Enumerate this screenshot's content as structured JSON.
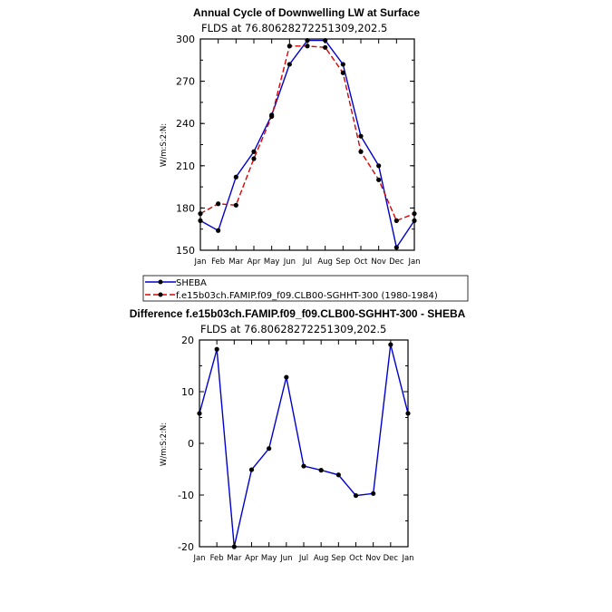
{
  "chart_data": [
    {
      "type": "line",
      "title": "Annual Cycle of Downwelling LW at Surface",
      "subtitle": "FLDS at 76.80628272251309,202.5",
      "ylabel": "W/m:S:2:N:",
      "ylim": [
        150,
        300
      ],
      "yticks": [
        150,
        180,
        210,
        240,
        270,
        300
      ],
      "categories": [
        "Jan",
        "Feb",
        "Mar",
        "Apr",
        "May",
        "Jun",
        "Jul",
        "Aug",
        "Sep",
        "Oct",
        "Nov",
        "Dec",
        "Jan"
      ],
      "series": [
        {
          "name": "SHEBA",
          "color": "#0000cc",
          "style": "solid",
          "values": [
            171,
            164,
            202,
            220,
            246,
            282,
            299,
            299,
            282,
            231,
            210,
            152,
            171
          ]
        },
        {
          "name": "f.e15b03ch.FAMIP.f09_f09.CLB00-SGHHT-300 (1980-1984)",
          "color": "#dd0000",
          "style": "dashed",
          "values": [
            176,
            183,
            182,
            215,
            245,
            295,
            295,
            294,
            276,
            220,
            200,
            171,
            176
          ]
        }
      ],
      "legend": "below"
    },
    {
      "type": "line",
      "title": "Difference f.e15b03ch.FAMIP.f09_f09.CLB00-SGHHT-300 - SHEBA",
      "subtitle": "FLDS at 76.80628272251309,202.5",
      "ylabel": "W/m:S:2:N:",
      "ylim": [
        -20,
        20
      ],
      "yticks": [
        -20,
        -10,
        0,
        10,
        20
      ],
      "categories": [
        "Jan",
        "Feb",
        "Mar",
        "Apr",
        "May",
        "Jun",
        "Jul",
        "Aug",
        "Sep",
        "Oct",
        "Nov",
        "Dec",
        "Jan"
      ],
      "series": [
        {
          "color": "#0000cc",
          "style": "solid",
          "values": [
            5.8,
            18.2,
            -20.0,
            -5.1,
            -1.0,
            12.8,
            -4.4,
            -5.2,
            -6.1,
            -10.1,
            -9.7,
            19.1,
            5.8
          ]
        }
      ]
    }
  ]
}
